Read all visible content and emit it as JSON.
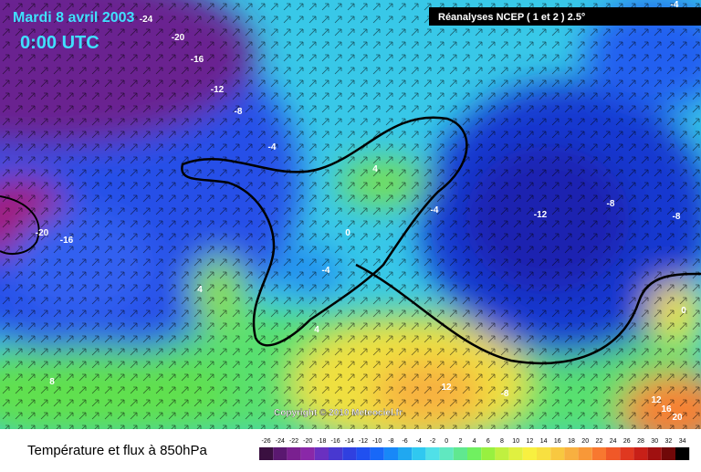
{
  "header": {
    "date": "Mardi 8 avril 2003",
    "time": "0:00 UTC",
    "source": "Réanalyses NCEP ( 1 et 2 ) 2.5°"
  },
  "copyright": "Copyright © 2010 Meteociel.fr",
  "footer": "Température et flux à 850hPa",
  "contour_labels": [
    -24,
    -20,
    -16,
    -12,
    -8,
    -4,
    4,
    -4,
    0,
    -4,
    -20,
    -16,
    4,
    4,
    8,
    12,
    -8,
    -12,
    -8,
    -8,
    0,
    12,
    16,
    20,
    -4
  ],
  "legend": {
    "ticks": [
      -26,
      -24,
      -22,
      -20,
      -18,
      -16,
      -14,
      -12,
      -10,
      -8,
      -6,
      -4,
      -2,
      0,
      2,
      4,
      6,
      8,
      10,
      12,
      14,
      16,
      18,
      20,
      22,
      24,
      26,
      28,
      30,
      32,
      34
    ],
    "colors": [
      "#3a1040",
      "#5a1870",
      "#7a2090",
      "#8a28a8",
      "#6a30c0",
      "#4838d0",
      "#3040e0",
      "#2050f0",
      "#1868f8",
      "#1888f8",
      "#20a8f0",
      "#30c8f0",
      "#50e0e8",
      "#60e8c0",
      "#60e890",
      "#70f060",
      "#98f040",
      "#c0f040",
      "#e0f040",
      "#f8f040",
      "#f8e040",
      "#f8c840",
      "#f8b040",
      "#f89838",
      "#f87830",
      "#f05828",
      "#e03820",
      "#c82018",
      "#a01010",
      "#700808",
      "#000000"
    ]
  }
}
